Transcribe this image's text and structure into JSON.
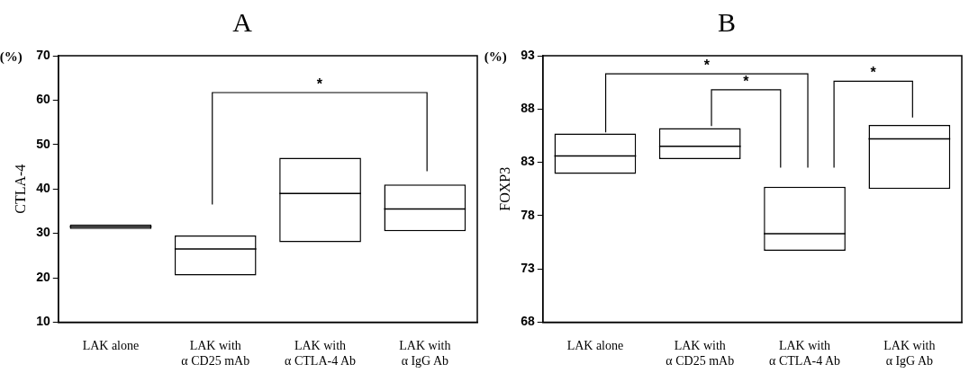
{
  "chart_data": [
    {
      "type": "box",
      "title": "A",
      "ylabel": "CTLA-4",
      "annotations": [
        "(%)",
        "*"
      ],
      "categories": [
        "LAK alone",
        "LAK with\nα CD25 mAb",
        "LAK with\nα CTLA-4 Ab",
        "LAK with\nα IgG Ab"
      ],
      "boxes": [
        {
          "low": 31,
          "q1": 31,
          "median": 31.5,
          "q3": 32,
          "high": 32
        },
        {
          "low": 20.5,
          "q1": 20.5,
          "median": 26.5,
          "q3": 29.5,
          "high": 29.5
        },
        {
          "low": 28,
          "q1": 28,
          "median": 39,
          "q3": 47,
          "high": 47
        },
        {
          "low": 30.5,
          "q1": 30.5,
          "median": 35.5,
          "q3": 41,
          "high": 41
        }
      ],
      "ylim": [
        10,
        70
      ],
      "yticks": [
        10,
        20,
        30,
        40,
        50,
        60,
        70
      ],
      "grid": false,
      "legend": false
    },
    {
      "type": "box",
      "title": "B",
      "ylabel": "FOXP3",
      "annotations": [
        "(%)",
        "*",
        "*",
        "*"
      ],
      "categories": [
        "LAK alone",
        "LAK with\nα CD25 mAb",
        "LAK with\nα CTLA-4 Ab",
        "LAK with\nα IgG Ab"
      ],
      "boxes": [
        {
          "low": 81.9,
          "q1": 81.9,
          "median": 83.6,
          "q3": 85.7,
          "high": 85.7
        },
        {
          "low": 83.3,
          "q1": 83.3,
          "median": 84.5,
          "q3": 86.2,
          "high": 86.2
        },
        {
          "low": 74.7,
          "q1": 74.7,
          "median": 76.3,
          "q3": 80.7,
          "high": 80.7
        },
        {
          "low": 80.5,
          "q1": 80.5,
          "median": 85.2,
          "q3": 86.5,
          "high": 86.5
        }
      ],
      "ylim": [
        68,
        93
      ],
      "yticks": [
        68,
        73,
        78,
        83,
        88,
        93
      ],
      "grid": false,
      "legend": false
    }
  ]
}
